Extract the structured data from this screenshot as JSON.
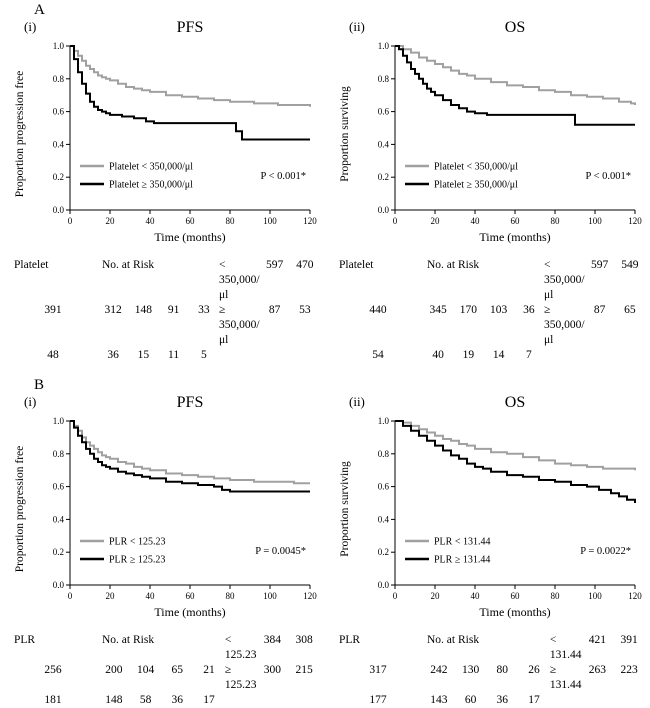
{
  "sections": [
    {
      "label": "A"
    },
    {
      "label": "B"
    }
  ],
  "colors": {
    "group_low": "#a0a0a0",
    "group_high": "#000000",
    "axis": "#000000"
  },
  "chart_data": [
    {
      "section": "A",
      "sub_label": "(i)",
      "type": "line",
      "km_step": true,
      "title": "PFS",
      "xlabel": "Time (months)",
      "ylabel": "Proportion progression free",
      "xlim": [
        0,
        120
      ],
      "ylim": [
        0.0,
        1.0
      ],
      "xticks": [
        0,
        20,
        40,
        60,
        80,
        100,
        120
      ],
      "yticks": [
        0.0,
        0.2,
        0.4,
        0.6,
        0.8,
        1.0
      ],
      "grid": false,
      "legend_position": "lower-left-inside",
      "p_value": "P < 0.001*",
      "series": [
        {
          "name": "Platelet < 350,000/μl",
          "color": "#a0a0a0",
          "points": [
            [
              0,
              1.0
            ],
            [
              2,
              0.97
            ],
            [
              4,
              0.94
            ],
            [
              6,
              0.91
            ],
            [
              8,
              0.88
            ],
            [
              10,
              0.86
            ],
            [
              12,
              0.84
            ],
            [
              14,
              0.82
            ],
            [
              16,
              0.81
            ],
            [
              18,
              0.8
            ],
            [
              20,
              0.79
            ],
            [
              24,
              0.77
            ],
            [
              28,
              0.75
            ],
            [
              32,
              0.74
            ],
            [
              36,
              0.73
            ],
            [
              40,
              0.72
            ],
            [
              48,
              0.7
            ],
            [
              56,
              0.69
            ],
            [
              64,
              0.68
            ],
            [
              72,
              0.67
            ],
            [
              80,
              0.66
            ],
            [
              92,
              0.65
            ],
            [
              104,
              0.64
            ],
            [
              116,
              0.64
            ],
            [
              120,
              0.63
            ]
          ]
        },
        {
          "name": "Platelet ≥ 350,000/μl",
          "color": "#000000",
          "points": [
            [
              0,
              1.0
            ],
            [
              2,
              0.92
            ],
            [
              4,
              0.84
            ],
            [
              6,
              0.77
            ],
            [
              8,
              0.71
            ],
            [
              10,
              0.66
            ],
            [
              12,
              0.63
            ],
            [
              14,
              0.61
            ],
            [
              16,
              0.6
            ],
            [
              18,
              0.59
            ],
            [
              20,
              0.58
            ],
            [
              26,
              0.57
            ],
            [
              32,
              0.56
            ],
            [
              38,
              0.54
            ],
            [
              42,
              0.53
            ],
            [
              83,
              0.48
            ],
            [
              86,
              0.43
            ],
            [
              120,
              0.43
            ]
          ]
        }
      ],
      "risk_table": {
        "group_header": "Platelet",
        "header": "No. at Risk",
        "times": [
          0,
          20,
          40,
          60,
          80,
          100,
          120
        ],
        "rows": [
          {
            "label": "< 350,000/μl",
            "values": [
              597,
              470,
              391,
              312,
              148,
              91,
              33
            ]
          },
          {
            "label": "≥ 350,000/μl",
            "values": [
              87,
              53,
              48,
              36,
              15,
              11,
              5
            ]
          }
        ]
      }
    },
    {
      "section": "A",
      "sub_label": "(ii)",
      "type": "line",
      "km_step": true,
      "title": "OS",
      "xlabel": "Time (months)",
      "ylabel": "Proportion surviving",
      "xlim": [
        0,
        120
      ],
      "ylim": [
        0.0,
        1.0
      ],
      "xticks": [
        0,
        20,
        40,
        60,
        80,
        100,
        120
      ],
      "yticks": [
        0.0,
        0.2,
        0.4,
        0.6,
        0.8,
        1.0
      ],
      "grid": false,
      "legend_position": "lower-left-inside",
      "p_value": "P < 0.001*",
      "series": [
        {
          "name": "Platelet < 350,000/μl",
          "color": "#a0a0a0",
          "points": [
            [
              0,
              1.0
            ],
            [
              4,
              0.98
            ],
            [
              8,
              0.96
            ],
            [
              12,
              0.93
            ],
            [
              16,
              0.91
            ],
            [
              20,
              0.89
            ],
            [
              24,
              0.87
            ],
            [
              28,
              0.85
            ],
            [
              32,
              0.83
            ],
            [
              36,
              0.82
            ],
            [
              40,
              0.8
            ],
            [
              48,
              0.78
            ],
            [
              56,
              0.76
            ],
            [
              64,
              0.75
            ],
            [
              72,
              0.73
            ],
            [
              80,
              0.72
            ],
            [
              88,
              0.7
            ],
            [
              96,
              0.69
            ],
            [
              104,
              0.68
            ],
            [
              112,
              0.66
            ],
            [
              118,
              0.65
            ],
            [
              120,
              0.64
            ]
          ]
        },
        {
          "name": "Platelet ≥ 350,000/μl",
          "color": "#000000",
          "points": [
            [
              0,
              1.0
            ],
            [
              2,
              0.98
            ],
            [
              4,
              0.94
            ],
            [
              6,
              0.9
            ],
            [
              8,
              0.86
            ],
            [
              10,
              0.83
            ],
            [
              12,
              0.8
            ],
            [
              14,
              0.77
            ],
            [
              16,
              0.74
            ],
            [
              18,
              0.72
            ],
            [
              20,
              0.7
            ],
            [
              24,
              0.67
            ],
            [
              28,
              0.64
            ],
            [
              32,
              0.62
            ],
            [
              36,
              0.6
            ],
            [
              40,
              0.59
            ],
            [
              46,
              0.58
            ],
            [
              90,
              0.52
            ],
            [
              120,
              0.52
            ]
          ]
        }
      ],
      "risk_table": {
        "group_header": "Platelet",
        "header": "No. at Risk",
        "times": [
          0,
          20,
          40,
          60,
          80,
          100,
          120
        ],
        "rows": [
          {
            "label": "< 350,000/μl",
            "values": [
              597,
              549,
              440,
              345,
              170,
              103,
              36
            ]
          },
          {
            "label": "≥ 350,000/μl",
            "values": [
              87,
              65,
              54,
              40,
              19,
              14,
              7
            ]
          }
        ]
      }
    },
    {
      "section": "B",
      "sub_label": "(i)",
      "type": "line",
      "km_step": true,
      "title": "PFS",
      "xlabel": "Time (months)",
      "ylabel": "Proportion progression free",
      "xlim": [
        0,
        120
      ],
      "ylim": [
        0.0,
        1.0
      ],
      "xticks": [
        0,
        20,
        40,
        60,
        80,
        100,
        120
      ],
      "yticks": [
        0.0,
        0.2,
        0.4,
        0.6,
        0.8,
        1.0
      ],
      "grid": false,
      "legend_position": "lower-left-inside",
      "p_value": "P = 0.0045*",
      "series": [
        {
          "name": "PLR < 125.23",
          "color": "#a0a0a0",
          "points": [
            [
              0,
              1.0
            ],
            [
              2,
              0.97
            ],
            [
              4,
              0.94
            ],
            [
              6,
              0.9
            ],
            [
              8,
              0.87
            ],
            [
              10,
              0.85
            ],
            [
              12,
              0.83
            ],
            [
              14,
              0.81
            ],
            [
              16,
              0.79
            ],
            [
              18,
              0.78
            ],
            [
              20,
              0.77
            ],
            [
              24,
              0.75
            ],
            [
              28,
              0.74
            ],
            [
              32,
              0.72
            ],
            [
              36,
              0.71
            ],
            [
              40,
              0.7
            ],
            [
              48,
              0.68
            ],
            [
              56,
              0.67
            ],
            [
              64,
              0.66
            ],
            [
              72,
              0.65
            ],
            [
              80,
              0.64
            ],
            [
              92,
              0.63
            ],
            [
              104,
              0.63
            ],
            [
              112,
              0.62
            ],
            [
              120,
              0.62
            ]
          ]
        },
        {
          "name": "PLR ≥ 125.23",
          "color": "#000000",
          "points": [
            [
              0,
              1.0
            ],
            [
              2,
              0.96
            ],
            [
              4,
              0.91
            ],
            [
              6,
              0.87
            ],
            [
              8,
              0.83
            ],
            [
              10,
              0.8
            ],
            [
              12,
              0.77
            ],
            [
              14,
              0.75
            ],
            [
              16,
              0.73
            ],
            [
              18,
              0.72
            ],
            [
              20,
              0.71
            ],
            [
              24,
              0.69
            ],
            [
              28,
              0.68
            ],
            [
              32,
              0.67
            ],
            [
              36,
              0.66
            ],
            [
              40,
              0.65
            ],
            [
              48,
              0.63
            ],
            [
              56,
              0.62
            ],
            [
              64,
              0.61
            ],
            [
              72,
              0.6
            ],
            [
              76,
              0.58
            ],
            [
              80,
              0.57
            ],
            [
              120,
              0.57
            ]
          ]
        }
      ],
      "risk_table": {
        "group_header": "PLR",
        "header": "No. at Risk",
        "times": [
          0,
          20,
          40,
          60,
          80,
          100,
          120
        ],
        "rows": [
          {
            "label": "< 125.23",
            "values": [
              384,
              308,
              256,
              200,
              104,
              65,
              21
            ]
          },
          {
            "label": "≥ 125.23",
            "values": [
              300,
              215,
              181,
              148,
              58,
              36,
              17
            ]
          }
        ]
      }
    },
    {
      "section": "B",
      "sub_label": "(ii)",
      "type": "line",
      "km_step": true,
      "title": "OS",
      "xlabel": "Time (months)",
      "ylabel": "Proportion surviving",
      "xlim": [
        0,
        120
      ],
      "ylim": [
        0.0,
        1.0
      ],
      "xticks": [
        0,
        20,
        40,
        60,
        80,
        100,
        120
      ],
      "yticks": [
        0.0,
        0.2,
        0.4,
        0.6,
        0.8,
        1.0
      ],
      "grid": false,
      "legend_position": "lower-left-inside",
      "p_value": "P = 0.0022*",
      "series": [
        {
          "name": "PLR < 131.44",
          "color": "#a0a0a0",
          "points": [
            [
              0,
              1.0
            ],
            [
              4,
              0.99
            ],
            [
              8,
              0.97
            ],
            [
              12,
              0.95
            ],
            [
              16,
              0.93
            ],
            [
              20,
              0.91
            ],
            [
              24,
              0.89
            ],
            [
              28,
              0.88
            ],
            [
              32,
              0.86
            ],
            [
              36,
              0.85
            ],
            [
              40,
              0.83
            ],
            [
              48,
              0.81
            ],
            [
              56,
              0.8
            ],
            [
              64,
              0.78
            ],
            [
              72,
              0.76
            ],
            [
              80,
              0.74
            ],
            [
              88,
              0.73
            ],
            [
              96,
              0.72
            ],
            [
              104,
              0.71
            ],
            [
              112,
              0.71
            ],
            [
              120,
              0.7
            ]
          ]
        },
        {
          "name": "PLR ≥ 131.44",
          "color": "#000000",
          "points": [
            [
              0,
              1.0
            ],
            [
              4,
              0.97
            ],
            [
              8,
              0.94
            ],
            [
              12,
              0.91
            ],
            [
              16,
              0.88
            ],
            [
              20,
              0.85
            ],
            [
              24,
              0.82
            ],
            [
              28,
              0.79
            ],
            [
              32,
              0.77
            ],
            [
              36,
              0.74
            ],
            [
              40,
              0.72
            ],
            [
              44,
              0.71
            ],
            [
              48,
              0.69
            ],
            [
              56,
              0.67
            ],
            [
              64,
              0.66
            ],
            [
              72,
              0.64
            ],
            [
              80,
              0.63
            ],
            [
              88,
              0.61
            ],
            [
              96,
              0.6
            ],
            [
              102,
              0.58
            ],
            [
              108,
              0.56
            ],
            [
              112,
              0.54
            ],
            [
              116,
              0.52
            ],
            [
              120,
              0.5
            ]
          ]
        }
      ],
      "risk_table": {
        "group_header": "PLR",
        "header": "No. at Risk",
        "times": [
          0,
          20,
          40,
          60,
          80,
          100,
          120
        ],
        "rows": [
          {
            "label": "< 131.44",
            "values": [
              421,
              391,
              317,
              242,
              130,
              80,
              26
            ]
          },
          {
            "label": "≥ 131.44",
            "values": [
              263,
              223,
              177,
              143,
              60,
              36,
              17
            ]
          }
        ]
      }
    }
  ]
}
